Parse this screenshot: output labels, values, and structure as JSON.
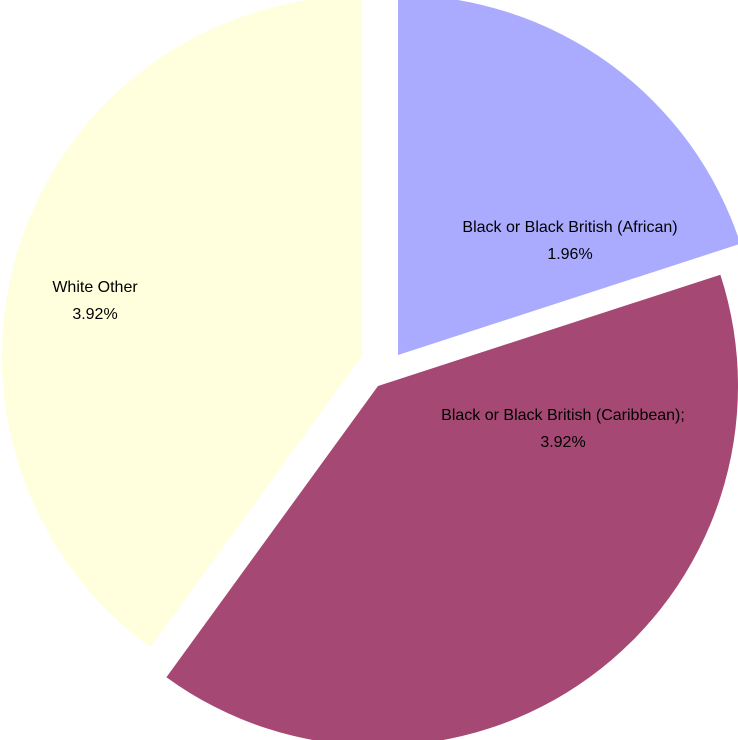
{
  "chart_data": {
    "type": "pie",
    "title": "",
    "slices": [
      {
        "label": "Black or Black British (African)",
        "value_label": "1.96%",
        "value": 1.96,
        "color": "#aaaaff"
      },
      {
        "label": "Black or Black British (Caribbean);",
        "value_label": "3.92%",
        "value": 3.92,
        "color": "#a64874"
      },
      {
        "label": "White Other",
        "value_label": "3.92%",
        "value": 3.92,
        "color": "#ffffdd"
      }
    ],
    "exploded": true,
    "legend": "none"
  }
}
